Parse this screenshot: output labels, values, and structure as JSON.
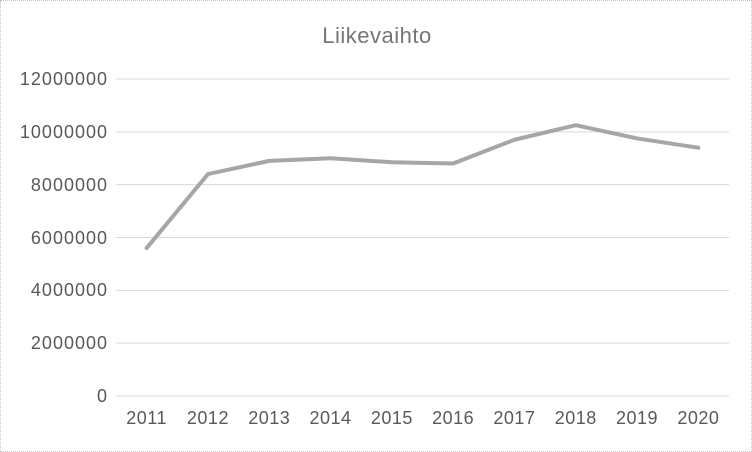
{
  "frame": {
    "background": "#ffffff",
    "border_color": "#c2c2c2"
  },
  "chart_data": {
    "type": "line",
    "title": "Liikevaihto",
    "categories": [
      "2011",
      "2012",
      "2013",
      "2014",
      "2015",
      "2016",
      "2017",
      "2018",
      "2019",
      "2020"
    ],
    "series": [
      {
        "name": "Liikevaihto",
        "color": "#a6a6a6",
        "values": [
          5600000,
          8400000,
          8900000,
          9000000,
          8850000,
          8800000,
          9700000,
          10250000,
          9750000,
          9400000
        ]
      }
    ],
    "xlabel": "",
    "ylabel": "",
    "ylim": [
      0,
      12000000
    ],
    "yticks": [
      0,
      2000000,
      4000000,
      6000000,
      8000000,
      10000000,
      12000000
    ],
    "ytick_labels": [
      "0",
      "2000000",
      "4000000",
      "6000000",
      "8000000",
      "10000000",
      "12000000"
    ],
    "grid": "horizontal",
    "legend": "none",
    "gridline_color": "#d9d9d9",
    "axis_line_color": "#d9d9d9",
    "tick_text_color": "#595959",
    "title_color": "#757575"
  }
}
